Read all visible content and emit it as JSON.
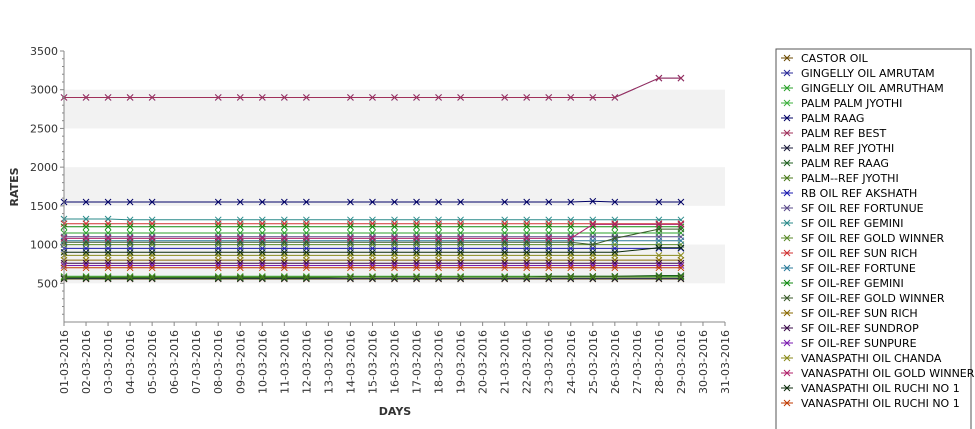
{
  "chart_data": {
    "type": "line",
    "title": "",
    "xlabel": "DAYS",
    "ylabel": "RATES",
    "ylim": [
      0,
      3500
    ],
    "y_ticks": [
      500,
      1000,
      1500,
      2000,
      2500,
      3000,
      3500
    ],
    "grid": "alternating horizontal bands",
    "legend_position": "right",
    "categories": [
      "01-03-2016",
      "02-03-2016",
      "03-03-2016",
      "04-03-2016",
      "05-03-2016",
      "06-03-2016",
      "07-03-2016",
      "08-03-2016",
      "09-03-2016",
      "10-03-2016",
      "11-03-2016",
      "12-03-2016",
      "13-03-2016",
      "14-03-2016",
      "15-03-2016",
      "16-03-2016",
      "17-03-2016",
      "18-03-2016",
      "19-03-2016",
      "20-03-2016",
      "21-03-2016",
      "22-03-2016",
      "23-03-2016",
      "24-03-2016",
      "25-03-2016",
      "26-03-2016",
      "27-03-2016",
      "28-03-2016",
      "29-03-2016",
      "30-03-2016",
      "31-03-2016"
    ],
    "series": [
      {
        "name": "CASTOR OIL",
        "color": "#6b4a00",
        "values": [
          555,
          555,
          555,
          555,
          555,
          null,
          null,
          555,
          555,
          555,
          555,
          555,
          null,
          555,
          555,
          555,
          555,
          555,
          555,
          null,
          555,
          555,
          555,
          555,
          555,
          555,
          null,
          555,
          555,
          null,
          null
        ]
      },
      {
        "name": "GINGELLY OIL AMRUTAM",
        "color": "#2a2a9a",
        "values": [
          2900,
          2900,
          2900,
          2900,
          2900,
          null,
          null,
          2900,
          2900,
          2900,
          2900,
          2900,
          null,
          2900,
          2900,
          2900,
          2900,
          2900,
          2900,
          null,
          2900,
          2900,
          2900,
          2900,
          2900,
          2900,
          null,
          3150,
          3150,
          null,
          null
        ]
      },
      {
        "name": "GINGELLY OIL AMRUTHAM",
        "color": "#2aa02a",
        "values": [
          1150,
          1150,
          1150,
          1150,
          1150,
          null,
          null,
          1150,
          1150,
          1150,
          1150,
          1150,
          null,
          1150,
          1150,
          1150,
          1150,
          1150,
          1150,
          null,
          1150,
          1150,
          1150,
          1150,
          1150,
          1150,
          null,
          1150,
          1150,
          null,
          null
        ]
      },
      {
        "name": "PALM PALM JYOTHI",
        "color": "#3cb03c",
        "values": [
          590,
          590,
          590,
          590,
          590,
          null,
          null,
          590,
          590,
          590,
          590,
          590,
          null,
          590,
          590,
          590,
          590,
          590,
          590,
          null,
          590,
          590,
          590,
          590,
          590,
          590,
          null,
          590,
          590,
          null,
          null
        ]
      },
      {
        "name": "PALM RAAG",
        "color": "#000066",
        "values": [
          1550,
          1550,
          1550,
          1550,
          1550,
          null,
          null,
          1550,
          1550,
          1550,
          1550,
          1550,
          null,
          1550,
          1550,
          1550,
          1550,
          1550,
          1550,
          null,
          1550,
          1550,
          1550,
          1550,
          1560,
          1550,
          null,
          1550,
          1550,
          null,
          null
        ]
      },
      {
        "name": "PALM REF BEST",
        "color": "#a0305a",
        "values": [
          2900,
          2900,
          2900,
          2900,
          2900,
          null,
          null,
          2900,
          2900,
          2900,
          2900,
          2900,
          null,
          2900,
          2900,
          2900,
          2900,
          2900,
          2900,
          null,
          2900,
          2900,
          2900,
          2900,
          2900,
          2900,
          null,
          3150,
          3150,
          null,
          null
        ]
      },
      {
        "name": "PALM REF JYOTHI",
        "color": "#1a1a3a",
        "values": [
          560,
          560,
          560,
          560,
          560,
          null,
          null,
          560,
          560,
          560,
          560,
          560,
          null,
          560,
          560,
          560,
          560,
          560,
          560,
          null,
          560,
          560,
          560,
          560,
          560,
          560,
          null,
          560,
          560,
          null,
          null
        ]
      },
      {
        "name": "PALM REF RAAG",
        "color": "#206020",
        "values": [
          570,
          570,
          570,
          570,
          570,
          null,
          null,
          570,
          570,
          570,
          570,
          570,
          null,
          580,
          580,
          580,
          580,
          580,
          580,
          null,
          580,
          580,
          590,
          590,
          590,
          590,
          null,
          600,
          600,
          null,
          null
        ]
      },
      {
        "name": "PALM--REF JYOTHI",
        "color": "#4a7a1a",
        "values": [
          580,
          580,
          580,
          580,
          580,
          null,
          null,
          580,
          580,
          580,
          580,
          580,
          null,
          580,
          580,
          580,
          580,
          580,
          580,
          null,
          580,
          580,
          580,
          580,
          580,
          580,
          null,
          580,
          580,
          null,
          null
        ]
      },
      {
        "name": "RB OIL REF AKSHATH",
        "color": "#1a1ab0",
        "values": [
          950,
          950,
          950,
          950,
          950,
          null,
          null,
          950,
          950,
          950,
          950,
          950,
          null,
          950,
          950,
          950,
          950,
          950,
          950,
          null,
          950,
          950,
          950,
          950,
          950,
          950,
          null,
          950,
          950,
          null,
          null
        ]
      },
      {
        "name": "SF OIL REF FORTUNUE",
        "color": "#5a4a8a",
        "values": [
          1100,
          1100,
          1100,
          1100,
          1100,
          null,
          null,
          1100,
          1100,
          1100,
          1100,
          1100,
          null,
          1100,
          1100,
          1100,
          1100,
          1100,
          1100,
          null,
          1100,
          1100,
          1100,
          1100,
          1100,
          1100,
          null,
          1100,
          1100,
          null,
          null
        ]
      },
      {
        "name": "SF OIL REF GEMINI",
        "color": "#2a8a8a",
        "values": [
          1330,
          1330,
          1330,
          1320,
          1320,
          null,
          null,
          1320,
          1320,
          1320,
          1320,
          1320,
          null,
          1320,
          1320,
          1320,
          1320,
          1320,
          1320,
          null,
          1320,
          1320,
          1320,
          1320,
          1320,
          1320,
          null,
          1320,
          1320,
          null,
          null
        ]
      },
      {
        "name": "SF OIL REF GOLD WINNER",
        "color": "#5a8a2a",
        "values": [
          1000,
          1000,
          1000,
          1000,
          1000,
          null,
          null,
          1000,
          1000,
          1000,
          1000,
          1000,
          null,
          1000,
          1000,
          1000,
          1000,
          1000,
          1000,
          null,
          1000,
          1000,
          1000,
          1000,
          1000,
          1000,
          null,
          1000,
          1000,
          null,
          null
        ]
      },
      {
        "name": "SF OIL REF SUN RICH",
        "color": "#d03030",
        "values": [
          1270,
          1270,
          1270,
          1270,
          1270,
          null,
          null,
          1270,
          1270,
          1270,
          1270,
          1270,
          null,
          1270,
          1270,
          1270,
          1270,
          1270,
          1270,
          null,
          1270,
          1270,
          1270,
          1270,
          1270,
          1270,
          null,
          1270,
          1270,
          null,
          null
        ]
      },
      {
        "name": "SF OIL-REF FORTUNE",
        "color": "#2a7a9a",
        "values": [
          1050,
          1050,
          1050,
          1050,
          1050,
          null,
          null,
          1050,
          1050,
          1050,
          1050,
          1050,
          null,
          1050,
          1050,
          1050,
          1050,
          1050,
          1050,
          null,
          1050,
          1050,
          1050,
          1050,
          1050,
          1050,
          null,
          1050,
          1050,
          null,
          null
        ]
      },
      {
        "name": "SF OIL-REF GEMINI",
        "color": "#108a10",
        "values": [
          1230,
          1230,
          1230,
          1230,
          1230,
          null,
          null,
          1230,
          1230,
          1230,
          1230,
          1230,
          null,
          1230,
          1230,
          1230,
          1230,
          1230,
          1230,
          null,
          1230,
          1230,
          1230,
          1230,
          1230,
          1230,
          null,
          1230,
          1230,
          null,
          null
        ]
      },
      {
        "name": "SF OIL-REF GOLD WINNER",
        "color": "#3a5a2a",
        "values": [
          1030,
          1030,
          1030,
          1030,
          1030,
          null,
          null,
          1030,
          1030,
          1030,
          1030,
          1030,
          null,
          1030,
          1030,
          1030,
          1030,
          1030,
          1030,
          null,
          1030,
          1030,
          1030,
          1030,
          1000,
          1080,
          null,
          1200,
          1200,
          null,
          null
        ]
      },
      {
        "name": "SF OIL-REF SUN RICH",
        "color": "#8a6a00",
        "values": [
          800,
          800,
          800,
          800,
          800,
          null,
          null,
          800,
          800,
          800,
          800,
          800,
          null,
          800,
          800,
          800,
          800,
          800,
          800,
          null,
          800,
          800,
          800,
          800,
          800,
          800,
          null,
          800,
          800,
          null,
          null
        ]
      },
      {
        "name": "SF OIL-REF SUNDROP",
        "color": "#3a0a4a",
        "values": [
          760,
          760,
          760,
          760,
          760,
          null,
          null,
          760,
          760,
          760,
          760,
          760,
          null,
          760,
          760,
          760,
          760,
          760,
          760,
          null,
          760,
          760,
          760,
          760,
          760,
          760,
          null,
          760,
          760,
          null,
          null
        ]
      },
      {
        "name": "SF OIL-REF SUNPURE",
        "color": "#7a1ab0",
        "values": [
          730,
          730,
          730,
          730,
          730,
          null,
          null,
          730,
          730,
          730,
          730,
          730,
          null,
          730,
          730,
          730,
          730,
          730,
          730,
          null,
          730,
          730,
          730,
          730,
          730,
          730,
          null,
          730,
          730,
          null,
          null
        ]
      },
      {
        "name": "VANASPATHI OIL CHANDA",
        "color": "#8a8a1a",
        "values": [
          860,
          860,
          860,
          860,
          860,
          null,
          null,
          860,
          860,
          860,
          860,
          860,
          null,
          860,
          860,
          860,
          860,
          860,
          860,
          null,
          860,
          860,
          860,
          860,
          860,
          860,
          null,
          860,
          860,
          null,
          null
        ]
      },
      {
        "name": "VANASPATHI OIL GOLD WINNER",
        "color": "#b0206a",
        "values": [
          1080,
          1080,
          1080,
          1080,
          1080,
          null,
          null,
          1080,
          1080,
          1080,
          1080,
          1080,
          null,
          1080,
          1080,
          1080,
          1080,
          1080,
          1080,
          null,
          1080,
          1080,
          1080,
          1080,
          1260,
          1260,
          null,
          1260,
          1260,
          null,
          null
        ]
      },
      {
        "name": "VANASPATHI OIL RUCHI NO 1",
        "color": "#0a2a0a",
        "values": [
          900,
          900,
          900,
          900,
          900,
          null,
          null,
          900,
          900,
          900,
          900,
          900,
          null,
          900,
          900,
          900,
          900,
          900,
          900,
          null,
          900,
          900,
          900,
          900,
          900,
          900,
          null,
          960,
          960,
          null,
          null
        ]
      },
      {
        "name": "VANASPATHI OIL RUCHI NO 1",
        "color": "#c03a00",
        "values": [
          700,
          700,
          700,
          700,
          700,
          null,
          null,
          700,
          700,
          700,
          700,
          700,
          null,
          700,
          700,
          700,
          700,
          700,
          700,
          null,
          700,
          700,
          700,
          700,
          700,
          700,
          null,
          700,
          700,
          null,
          null
        ]
      }
    ]
  }
}
